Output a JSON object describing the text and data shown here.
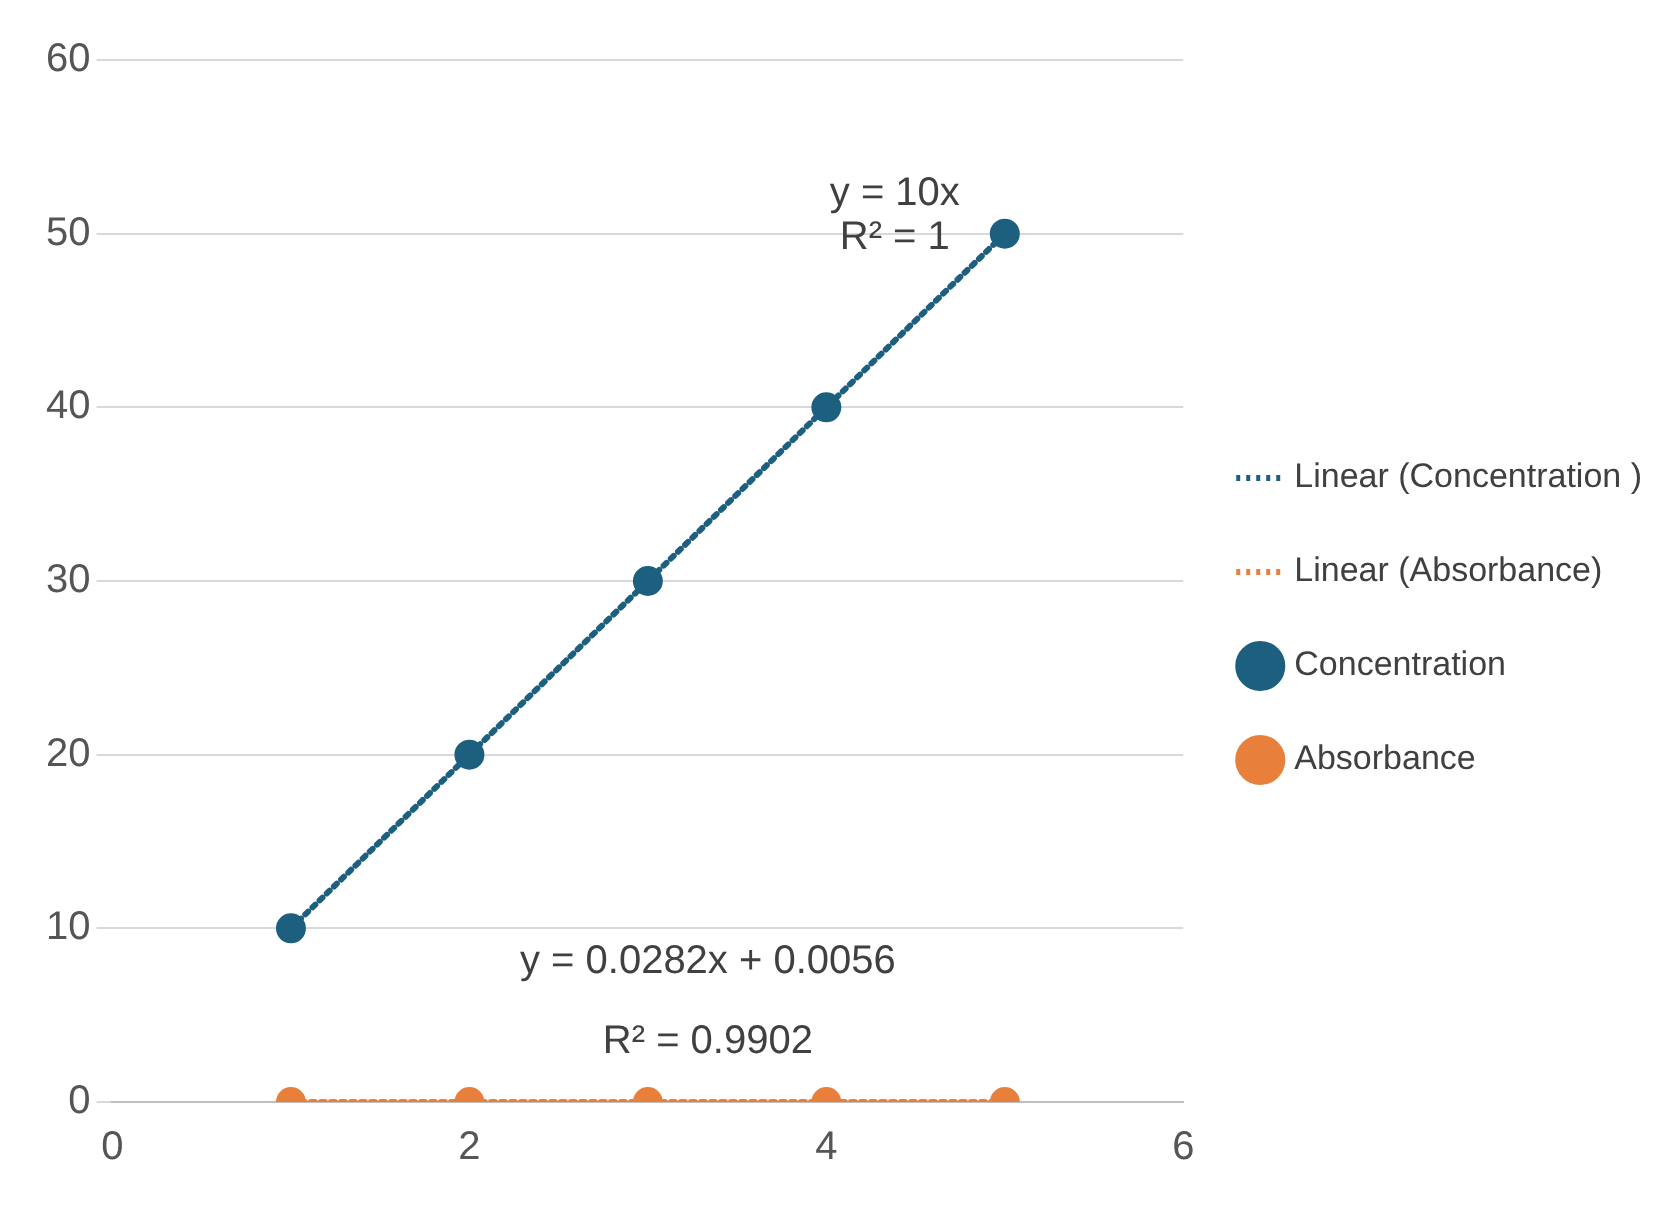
{
  "chart_data": {
    "type": "scatter",
    "xlim": [
      0,
      6
    ],
    "xticks": [
      0,
      2,
      4,
      6
    ],
    "ylim": [
      0,
      60
    ],
    "yticks": [
      0,
      10,
      20,
      30,
      40,
      50,
      60
    ],
    "grid": "y",
    "legend": "right",
    "series": [
      {
        "name": "Concentration",
        "color": "#1d5f7f",
        "marker": "circle",
        "x": [
          1,
          2,
          3,
          4,
          5
        ],
        "values": [
          10,
          20,
          30,
          40,
          50
        ]
      },
      {
        "name": "Absorbance",
        "color": "#e8803c",
        "marker": "circle",
        "x": [
          1,
          2,
          3,
          4,
          5
        ],
        "values": [
          0,
          0,
          0,
          0,
          0
        ]
      },
      {
        "name": "Linear (Concentration )",
        "type": "line",
        "color": "#1d5f7f",
        "marker": "none",
        "line_style": "dotted",
        "x": [
          1,
          5
        ],
        "values": [
          10,
          50
        ]
      },
      {
        "name": "Linear (Absorbance)",
        "type": "line",
        "color": "#e8803c",
        "marker": "none",
        "line_style": "dotted",
        "x": [
          1,
          5
        ],
        "values": [
          0,
          0
        ]
      }
    ],
    "annotations": [
      "y = 10x",
      "R² = 1",
      "y = 0.0282x + 0.0056",
      "R² = 0.9902"
    ]
  }
}
